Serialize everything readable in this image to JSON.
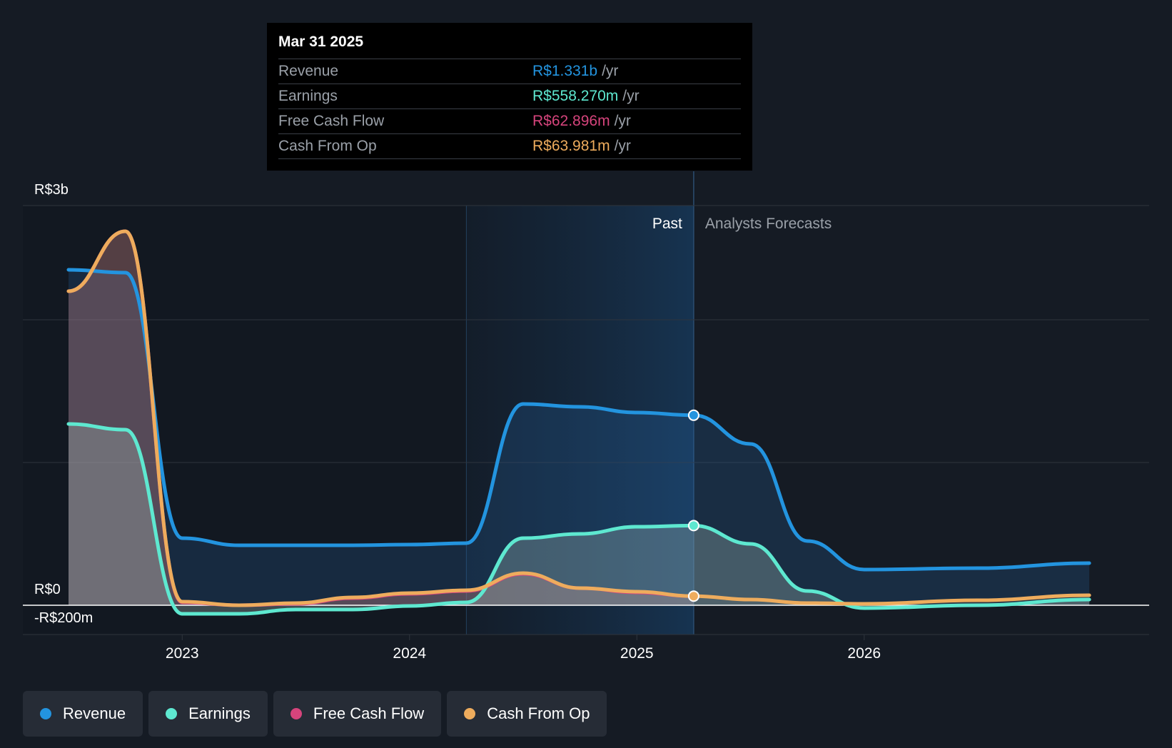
{
  "colors": {
    "revenue": "#2394df",
    "earnings": "#5ee8d0",
    "free_cash_flow": "#d6447c",
    "cash_from_op": "#eeac5d",
    "background": "#151b24"
  },
  "tooltip": {
    "date": "Mar 31 2025",
    "rows": [
      {
        "label": "Revenue",
        "value": "R$1.331b",
        "unit": "/yr",
        "color": "#2394df"
      },
      {
        "label": "Earnings",
        "value": "R$558.270m",
        "unit": "/yr",
        "color": "#5ee8d0"
      },
      {
        "label": "Free Cash Flow",
        "value": "R$62.896m",
        "unit": "/yr",
        "color": "#d6447c"
      },
      {
        "label": "Cash From Op",
        "value": "R$63.981m",
        "unit": "/yr",
        "color": "#eeac5d"
      }
    ]
  },
  "past_label": "Past",
  "forecast_label": "Analysts Forecasts",
  "legend": [
    {
      "label": "Revenue",
      "color": "#2394df"
    },
    {
      "label": "Earnings",
      "color": "#5ee8d0"
    },
    {
      "label": "Free Cash Flow",
      "color": "#d6447c"
    },
    {
      "label": "Cash From Op",
      "color": "#eeac5d"
    }
  ],
  "chart_data": {
    "type": "area",
    "title": "",
    "xlabel": "",
    "ylabel": "",
    "units": "R$ millions",
    "ylim": [
      -200,
      2800
    ],
    "y_tick_labels": [
      {
        "value": 2800,
        "label": "R$3b"
      },
      {
        "value": 0,
        "label": "R$0"
      },
      {
        "value": -200,
        "label": "-R$200m"
      }
    ],
    "x_ticks": [
      2023,
      2024,
      2025,
      2026
    ],
    "x_range": [
      2022.3,
      2026.99
    ],
    "past_end": 2025.25,
    "highlight_start": 2024.25,
    "series": [
      {
        "name": "Revenue",
        "key": "revenue",
        "points": [
          [
            2022.5,
            2350
          ],
          [
            2022.75,
            2330
          ],
          [
            2023.0,
            470
          ],
          [
            2023.25,
            420
          ],
          [
            2023.5,
            420
          ],
          [
            2023.75,
            420
          ],
          [
            2024.0,
            425
          ],
          [
            2024.25,
            435
          ],
          [
            2024.5,
            1410
          ],
          [
            2024.75,
            1390
          ],
          [
            2025.0,
            1350
          ],
          [
            2025.25,
            1331
          ],
          [
            2025.5,
            1130
          ],
          [
            2025.75,
            450
          ],
          [
            2026.0,
            250
          ],
          [
            2026.5,
            260
          ],
          [
            2026.99,
            295
          ]
        ]
      },
      {
        "name": "Earnings",
        "key": "earnings",
        "points": [
          [
            2022.5,
            1270
          ],
          [
            2022.75,
            1230
          ],
          [
            2023.0,
            -60
          ],
          [
            2023.25,
            -60
          ],
          [
            2023.5,
            -30
          ],
          [
            2023.75,
            -30
          ],
          [
            2024.0,
            -5
          ],
          [
            2024.25,
            20
          ],
          [
            2024.5,
            470
          ],
          [
            2024.75,
            500
          ],
          [
            2025.0,
            550
          ],
          [
            2025.25,
            558
          ],
          [
            2025.5,
            430
          ],
          [
            2025.75,
            100
          ],
          [
            2026.0,
            -20
          ],
          [
            2026.5,
            0
          ],
          [
            2026.99,
            40
          ]
        ]
      },
      {
        "name": "Free Cash Flow",
        "key": "free_cash_flow",
        "points": [
          [
            2022.5,
            2200
          ],
          [
            2022.75,
            2620
          ],
          [
            2023.0,
            20
          ],
          [
            2023.25,
            0
          ],
          [
            2023.5,
            10
          ],
          [
            2023.75,
            50
          ],
          [
            2024.0,
            80
          ],
          [
            2024.25,
            100
          ],
          [
            2024.5,
            220
          ],
          [
            2024.75,
            120
          ],
          [
            2025.0,
            90
          ],
          [
            2025.25,
            63
          ]
        ]
      },
      {
        "name": "Cash From Op",
        "key": "cash_from_op",
        "points": [
          [
            2022.5,
            2200
          ],
          [
            2022.75,
            2620
          ],
          [
            2023.0,
            25
          ],
          [
            2023.25,
            0
          ],
          [
            2023.5,
            15
          ],
          [
            2023.75,
            55
          ],
          [
            2024.0,
            85
          ],
          [
            2024.25,
            105
          ],
          [
            2024.5,
            225
          ],
          [
            2024.75,
            120
          ],
          [
            2025.0,
            95
          ],
          [
            2025.25,
            64
          ],
          [
            2025.5,
            40
          ],
          [
            2025.75,
            15
          ],
          [
            2026.0,
            10
          ],
          [
            2026.5,
            35
          ],
          [
            2026.99,
            70
          ]
        ]
      }
    ]
  }
}
